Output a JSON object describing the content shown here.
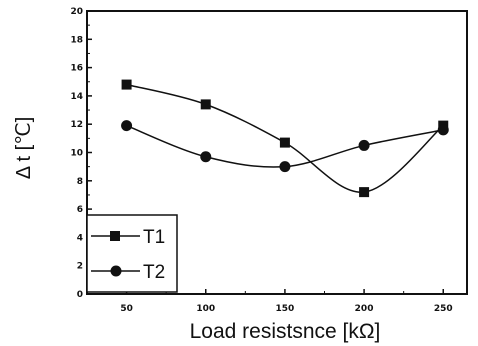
{
  "chart_data": {
    "type": "line",
    "xlabel": "Load resistsnce [kΩ]",
    "ylabel": "Δ t [℃]",
    "x": [
      50,
      100,
      150,
      200,
      250
    ],
    "xlim": [
      25,
      265
    ],
    "ylim": [
      0,
      20
    ],
    "x_ticks": [
      "50",
      "100",
      "150",
      "200",
      "250"
    ],
    "y_ticks": [
      "0",
      "2",
      "4",
      "6",
      "8",
      "10",
      "12",
      "14",
      "16",
      "18",
      "20"
    ],
    "grid": false,
    "legend_position": "bottom-left",
    "smooth": true,
    "series": [
      {
        "name": "T1",
        "marker": "square",
        "values": [
          14.8,
          13.4,
          10.7,
          7.2,
          11.9
        ]
      },
      {
        "name": "T2",
        "marker": "circle",
        "values": [
          11.9,
          9.7,
          9.0,
          10.5,
          11.6
        ]
      }
    ]
  },
  "colors": {
    "line": "#111111",
    "marker": "#111111",
    "background": "#ffffff"
  }
}
